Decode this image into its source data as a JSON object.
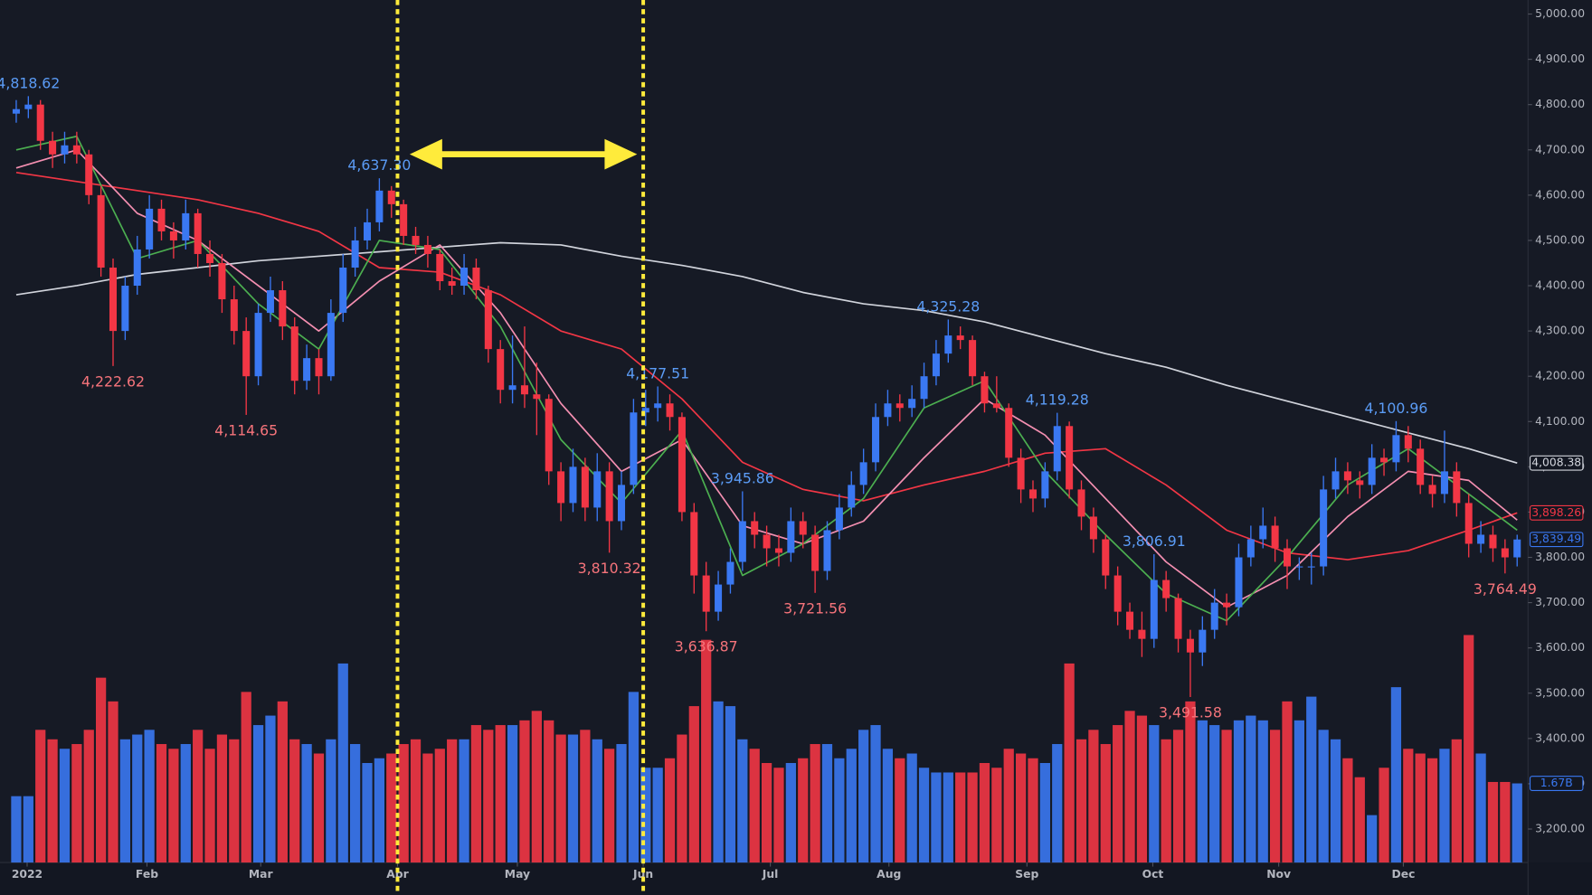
{
  "chart_data": {
    "type": "candlestick",
    "up_color": "#3a78f2",
    "down_color": "#f23645",
    "grid": false,
    "xlim": [
      -0.67,
      124.9
    ],
    "ylim": [
      3126,
      5031
    ],
    "volume_lim": [
      0,
      18.2
    ],
    "yticks": [
      {
        "value": 3200,
        "label": "3,200.00"
      },
      {
        "value": 3300,
        "label": "3,300.00"
      },
      {
        "value": 3400,
        "label": "3,400.00"
      },
      {
        "value": 3500,
        "label": "3,500.00"
      },
      {
        "value": 3600,
        "label": "3,600.00"
      },
      {
        "value": 3700,
        "label": "3,700.00"
      },
      {
        "value": 3800,
        "label": "3,800.00"
      },
      {
        "value": 3900,
        "label": "3,900.00"
      },
      {
        "value": 4000,
        "label": "4,000.00"
      },
      {
        "value": 4100,
        "label": "4,100.00"
      },
      {
        "value": 4200,
        "label": "4,200.00"
      },
      {
        "value": 4300,
        "label": "4,300.00"
      },
      {
        "value": 4400,
        "label": "4,400.00"
      },
      {
        "value": 4500,
        "label": "4,500.00"
      },
      {
        "value": 4600,
        "label": "4,600.00"
      },
      {
        "value": 4700,
        "label": "4,700.00"
      },
      {
        "value": 4800,
        "label": "4,800.00"
      },
      {
        "value": 4900,
        "label": "4,900.00"
      },
      {
        "value": 5000,
        "label": "5,000.00"
      }
    ],
    "xticks": [
      {
        "value": 0.9,
        "label": "2022"
      },
      {
        "value": 10.8,
        "label": "Feb"
      },
      {
        "value": 20.2,
        "label": "Mar"
      },
      {
        "value": 31.5,
        "label": "Apr"
      },
      {
        "value": 41.4,
        "label": "May"
      },
      {
        "value": 51.8,
        "label": "Jun"
      },
      {
        "value": 62.3,
        "label": "Jul"
      },
      {
        "value": 72.1,
        "label": "Aug"
      },
      {
        "value": 83.5,
        "label": "Sep"
      },
      {
        "value": 93.9,
        "label": "Oct"
      },
      {
        "value": 104.3,
        "label": "Nov"
      },
      {
        "value": 114.6,
        "label": "Dec"
      }
    ],
    "candles": [
      [
        4780,
        4810,
        4760,
        4790
      ],
      [
        4790,
        4818.62,
        4770,
        4800
      ],
      [
        4800,
        4810,
        4700,
        4720
      ],
      [
        4720,
        4740,
        4660,
        4690
      ],
      [
        4690,
        4740,
        4670,
        4710
      ],
      [
        4710,
        4740,
        4670,
        4690
      ],
      [
        4690,
        4700,
        4580,
        4600
      ],
      [
        4600,
        4620,
        4420,
        4440
      ],
      [
        4440,
        4460,
        4222.62,
        4300
      ],
      [
        4300,
        4420,
        4280,
        4400
      ],
      [
        4400,
        4510,
        4380,
        4480
      ],
      [
        4480,
        4600,
        4460,
        4570
      ],
      [
        4570,
        4590,
        4500,
        4520
      ],
      [
        4520,
        4540,
        4460,
        4500
      ],
      [
        4500,
        4590,
        4480,
        4560
      ],
      [
        4560,
        4570,
        4440,
        4470
      ],
      [
        4470,
        4500,
        4420,
        4450
      ],
      [
        4450,
        4470,
        4340,
        4370
      ],
      [
        4370,
        4400,
        4270,
        4300
      ],
      [
        4300,
        4330,
        4114.65,
        4200
      ],
      [
        4200,
        4360,
        4180,
        4340
      ],
      [
        4340,
        4420,
        4320,
        4390
      ],
      [
        4390,
        4410,
        4280,
        4310
      ],
      [
        4310,
        4330,
        4160,
        4190
      ],
      [
        4190,
        4270,
        4170,
        4240
      ],
      [
        4240,
        4260,
        4160,
        4200
      ],
      [
        4200,
        4370,
        4190,
        4340
      ],
      [
        4340,
        4470,
        4320,
        4440
      ],
      [
        4440,
        4530,
        4420,
        4500
      ],
      [
        4500,
        4570,
        4480,
        4540
      ],
      [
        4540,
        4637.3,
        4520,
        4610
      ],
      [
        4610,
        4620,
        4550,
        4580
      ],
      [
        4580,
        4590,
        4490,
        4510
      ],
      [
        4510,
        4530,
        4470,
        4490
      ],
      [
        4490,
        4510,
        4440,
        4470
      ],
      [
        4470,
        4480,
        4390,
        4410
      ],
      [
        4410,
        4440,
        4380,
        4400
      ],
      [
        4400,
        4470,
        4380,
        4440
      ],
      [
        4440,
        4460,
        4370,
        4390
      ],
      [
        4390,
        4400,
        4230,
        4260
      ],
      [
        4260,
        4280,
        4140,
        4170
      ],
      [
        4170,
        4290,
        4140,
        4180
      ],
      [
        4180,
        4310,
        4130,
        4160
      ],
      [
        4160,
        4230,
        4070,
        4150
      ],
      [
        4150,
        4160,
        3960,
        3990
      ],
      [
        3990,
        4010,
        3880,
        3920
      ],
      [
        3920,
        4040,
        3900,
        4000
      ],
      [
        4000,
        4020,
        3880,
        3910
      ],
      [
        3910,
        4030,
        3880,
        3990
      ],
      [
        3990,
        4010,
        3810.32,
        3880
      ],
      [
        3880,
        3990,
        3860,
        3960
      ],
      [
        3960,
        4150,
        3940,
        4120
      ],
      [
        4120,
        4170,
        4090,
        4130
      ],
      [
        4130,
        4177.51,
        4100,
        4140
      ],
      [
        4140,
        4160,
        4080,
        4110
      ],
      [
        4110,
        4120,
        3880,
        3900
      ],
      [
        3900,
        3920,
        3720,
        3760
      ],
      [
        3760,
        3790,
        3636.87,
        3680
      ],
      [
        3680,
        3770,
        3660,
        3740
      ],
      [
        3740,
        3820,
        3720,
        3790
      ],
      [
        3790,
        3945.86,
        3770,
        3880
      ],
      [
        3880,
        3900,
        3820,
        3850
      ],
      [
        3850,
        3870,
        3780,
        3820
      ],
      [
        3820,
        3850,
        3780,
        3810
      ],
      [
        3810,
        3910,
        3790,
        3880
      ],
      [
        3880,
        3900,
        3820,
        3850
      ],
      [
        3850,
        3870,
        3721.56,
        3770
      ],
      [
        3770,
        3880,
        3750,
        3860
      ],
      [
        3860,
        3940,
        3840,
        3910
      ],
      [
        3910,
        3990,
        3890,
        3960
      ],
      [
        3960,
        4040,
        3940,
        4010
      ],
      [
        4010,
        4140,
        3990,
        4110
      ],
      [
        4110,
        4170,
        4090,
        4140
      ],
      [
        4140,
        4160,
        4100,
        4130
      ],
      [
        4130,
        4180,
        4110,
        4150
      ],
      [
        4150,
        4230,
        4130,
        4200
      ],
      [
        4200,
        4280,
        4180,
        4250
      ],
      [
        4250,
        4325.28,
        4230,
        4290
      ],
      [
        4290,
        4310,
        4260,
        4280
      ],
      [
        4280,
        4290,
        4180,
        4200
      ],
      [
        4200,
        4210,
        4120,
        4140
      ],
      [
        4140,
        4200,
        4120,
        4130
      ],
      [
        4130,
        4140,
        4000,
        4020
      ],
      [
        4020,
        4040,
        3920,
        3950
      ],
      [
        3950,
        3970,
        3900,
        3930
      ],
      [
        3930,
        4010,
        3910,
        3990
      ],
      [
        3990,
        4119.28,
        3970,
        4090
      ],
      [
        4090,
        4100,
        3930,
        3950
      ],
      [
        3950,
        3970,
        3860,
        3890
      ],
      [
        3890,
        3910,
        3810,
        3840
      ],
      [
        3840,
        3850,
        3730,
        3760
      ],
      [
        3760,
        3780,
        3650,
        3680
      ],
      [
        3680,
        3700,
        3620,
        3640
      ],
      [
        3640,
        3680,
        3580,
        3620
      ],
      [
        3620,
        3806.91,
        3600,
        3750
      ],
      [
        3750,
        3770,
        3680,
        3710
      ],
      [
        3710,
        3720,
        3590,
        3620
      ],
      [
        3620,
        3640,
        3491.58,
        3590
      ],
      [
        3590,
        3670,
        3560,
        3640
      ],
      [
        3640,
        3730,
        3620,
        3700
      ],
      [
        3700,
        3720,
        3650,
        3690
      ],
      [
        3690,
        3830,
        3670,
        3800
      ],
      [
        3800,
        3870,
        3780,
        3840
      ],
      [
        3840,
        3910,
        3820,
        3870
      ],
      [
        3870,
        3890,
        3790,
        3820
      ],
      [
        3820,
        3840,
        3730,
        3780
      ],
      [
        3780,
        3800,
        3750,
        3780
      ],
      [
        3780,
        3810,
        3740,
        3780
      ],
      [
        3780,
        3980,
        3760,
        3950
      ],
      [
        3950,
        4020,
        3930,
        3990
      ],
      [
        3990,
        4010,
        3940,
        3970
      ],
      [
        3970,
        3990,
        3930,
        3960
      ],
      [
        3960,
        4050,
        3940,
        4020
      ],
      [
        4020,
        4040,
        3980,
        4010
      ],
      [
        4010,
        4100.96,
        3990,
        4070
      ],
      [
        4070,
        4090,
        4010,
        4040
      ],
      [
        4040,
        4060,
        3940,
        3960
      ],
      [
        3960,
        3980,
        3910,
        3940
      ],
      [
        3940,
        4080,
        3920,
        3990
      ],
      [
        3990,
        4010,
        3890,
        3920
      ],
      [
        3920,
        3940,
        3800,
        3830
      ],
      [
        3830,
        3880,
        3810,
        3850
      ],
      [
        3850,
        3870,
        3790,
        3820
      ],
      [
        3820,
        3840,
        3764.49,
        3800
      ],
      [
        3800,
        3850,
        3780,
        3839.49
      ]
    ],
    "last_price_label": "3,839.49",
    "volume": [
      1.4,
      1.4,
      2.8,
      2.6,
      2.4,
      2.5,
      2.8,
      3.9,
      3.4,
      2.6,
      2.7,
      2.8,
      2.5,
      2.4,
      2.5,
      2.8,
      2.4,
      2.7,
      2.6,
      3.6,
      2.9,
      3.1,
      3.4,
      2.6,
      2.5,
      2.3,
      2.6,
      4.2,
      2.5,
      2.1,
      2.2,
      2.3,
      2.5,
      2.6,
      2.3,
      2.4,
      2.6,
      2.6,
      2.9,
      2.8,
      2.9,
      2.9,
      3.0,
      3.2,
      3.0,
      2.7,
      2.7,
      2.8,
      2.6,
      2.4,
      2.5,
      3.6,
      2.0,
      2.0,
      2.2,
      2.7,
      3.3,
      4.7,
      3.4,
      3.3,
      2.6,
      2.4,
      2.1,
      2.0,
      2.1,
      2.2,
      2.5,
      2.5,
      2.2,
      2.4,
      2.8,
      2.9,
      2.4,
      2.2,
      2.3,
      2.0,
      1.9,
      1.9,
      1.9,
      1.9,
      2.1,
      2.0,
      2.4,
      2.3,
      2.2,
      2.1,
      2.5,
      4.2,
      2.6,
      2.8,
      2.5,
      2.9,
      3.2,
      3.1,
      2.9,
      2.6,
      2.8,
      3.4,
      3.0,
      2.9,
      2.8,
      3.0,
      3.1,
      3.0,
      2.8,
      3.4,
      3.0,
      3.5,
      2.8,
      2.6,
      2.2,
      1.8,
      1.0,
      2.0,
      3.7,
      2.4,
      2.3,
      2.2,
      2.4,
      2.6,
      4.8,
      2.3,
      1.7,
      1.7,
      1.67
    ],
    "last_volume_label": "1.67B",
    "ma_x": [
      0,
      5,
      10,
      15,
      20,
      25,
      30,
      35,
      40,
      45,
      50,
      55,
      60,
      65,
      70,
      75,
      80,
      85,
      90,
      95,
      100,
      105,
      110,
      115,
      120,
      124
    ],
    "series": [
      {
        "color": "#d1d4dc",
        "values": [
          4380,
          4400,
          4425,
          4440,
          4455,
          4465,
          4475,
          4485,
          4495,
          4490,
          4465,
          4445,
          4420,
          4385,
          4360,
          4345,
          4320,
          4285,
          4250,
          4220,
          4180,
          4145,
          4110,
          4075,
          4040,
          4008.38
        ],
        "last_label": "4,008.38"
      },
      {
        "color": "#f23645",
        "values": [
          4650,
          4630,
          4610,
          4590,
          4560,
          4520,
          4440,
          4430,
          4380,
          4300,
          4260,
          4150,
          4010,
          3950,
          3925,
          3960,
          3990,
          4030,
          4040,
          3960,
          3860,
          3810,
          3795,
          3815,
          3860,
          3898.26
        ],
        "last_label": "3,898.26"
      },
      {
        "color": "#f48fb1",
        "values": [
          4660,
          4700,
          4560,
          4500,
          4400,
          4300,
          4410,
          4490,
          4340,
          4140,
          3990,
          4060,
          3870,
          3830,
          3880,
          4020,
          4150,
          4070,
          3930,
          3790,
          3690,
          3760,
          3890,
          3990,
          3970,
          3882.44
        ]
      },
      {
        "color": "#4caf50",
        "values": [
          4700,
          4730,
          4460,
          4500,
          4360,
          4260,
          4500,
          4480,
          4310,
          4060,
          3920,
          4080,
          3760,
          3830,
          3930,
          4130,
          4190,
          3990,
          3850,
          3720,
          3660,
          3800,
          3960,
          4040,
          3940,
          3860
        ]
      }
    ],
    "annotations": [
      {
        "x": 1,
        "value": 4818.62,
        "label": "4,818.62",
        "color": "#5b9cf6",
        "placement": "above"
      },
      {
        "x": 8,
        "value": 4222.62,
        "label": "4,222.62",
        "color": "#f7747b",
        "placement": "below"
      },
      {
        "x": 19,
        "value": 4114.65,
        "label": "4,114.65",
        "color": "#f7747b",
        "placement": "below"
      },
      {
        "x": 30,
        "value": 4637.3,
        "label": "4,637.30",
        "color": "#5b9cf6",
        "placement": "above"
      },
      {
        "x": 49,
        "value": 3810.32,
        "label": "3,810.32",
        "color": "#f7747b",
        "placement": "below"
      },
      {
        "x": 53,
        "value": 4177.51,
        "label": "4,177.51",
        "color": "#5b9cf6",
        "placement": "above"
      },
      {
        "x": 57,
        "value": 3636.87,
        "label": "3,636.87",
        "color": "#f7747b",
        "placement": "below"
      },
      {
        "x": 60,
        "value": 3945.86,
        "label": "3,945.86",
        "color": "#5b9cf6",
        "placement": "above"
      },
      {
        "x": 66,
        "value": 3721.56,
        "label": "3,721.56",
        "color": "#f7747b",
        "placement": "below"
      },
      {
        "x": 77,
        "value": 4325.28,
        "label": "4,325.28",
        "color": "#5b9cf6",
        "placement": "above"
      },
      {
        "x": 86,
        "value": 4119.28,
        "label": "4,119.28",
        "color": "#5b9cf6",
        "placement": "above"
      },
      {
        "x": 94,
        "value": 3806.91,
        "label": "3,806.91",
        "color": "#5b9cf6",
        "placement": "above"
      },
      {
        "x": 97,
        "value": 3491.58,
        "label": "3,491.58",
        "color": "#f7747b",
        "placement": "below"
      },
      {
        "x": 114,
        "value": 4100.96,
        "label": "4,100.96",
        "color": "#5b9cf6",
        "placement": "above"
      },
      {
        "x": 123,
        "value": 3764.49,
        "label": "3,764.49",
        "color": "#f7747b",
        "placement": "below"
      }
    ],
    "markers": [
      {
        "x": 31.5,
        "color": "#ffeb3b"
      },
      {
        "x": 51.8,
        "color": "#ffeb3b"
      }
    ]
  }
}
